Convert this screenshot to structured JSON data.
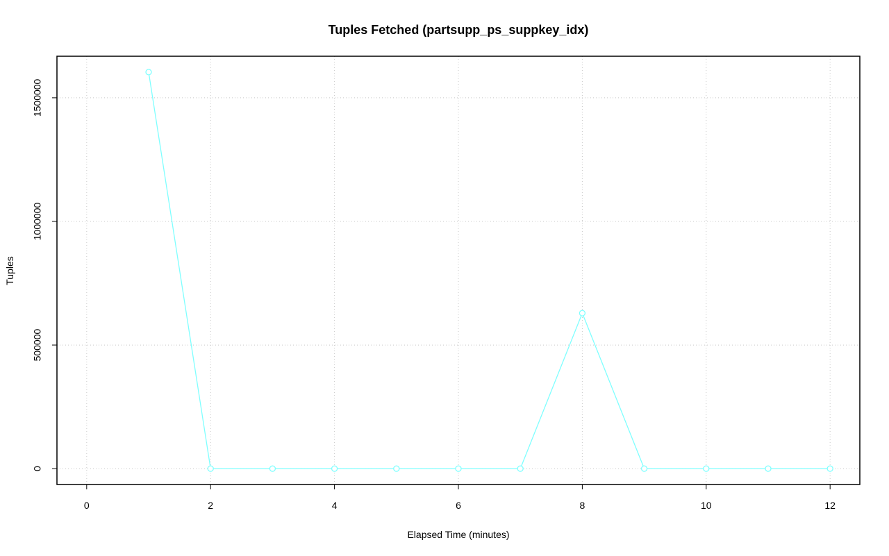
{
  "chart_data": {
    "type": "line",
    "title": "Tuples Fetched (partsupp_ps_suppkey_idx)",
    "x_label": "Elapsed Time (minutes)",
    "y_label": "Tuples",
    "x": [
      1,
      2,
      3,
      4,
      5,
      6,
      7,
      8,
      9,
      10,
      11,
      12
    ],
    "series": [
      {
        "name": "Tuples",
        "color": "#7fffff",
        "values": [
          1604000,
          0,
          0,
          0,
          0,
          0,
          0,
          629000,
          0,
          0,
          0,
          0
        ]
      }
    ],
    "xlim": [
      -0.48,
      12.48
    ],
    "xticks": [
      0,
      2,
      4,
      6,
      8,
      10,
      12
    ],
    "ylim": [
      -64160,
      1668160
    ],
    "yticks": [
      0,
      500000,
      1000000,
      1500000
    ],
    "grid": true
  }
}
